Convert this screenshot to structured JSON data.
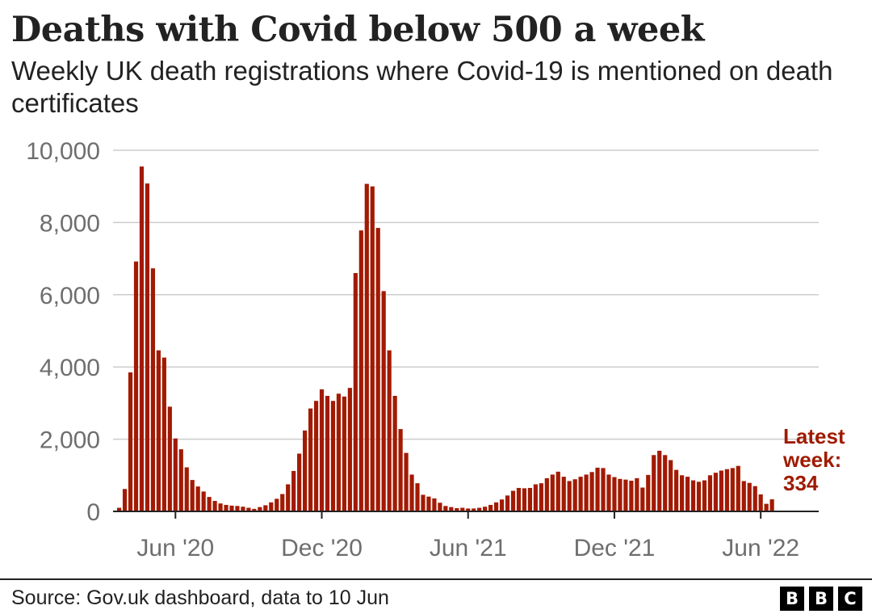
{
  "header": {
    "title": "Deaths with Covid below 500 a week",
    "subtitle": "Weekly UK death registrations where Covid-19 is mentioned on death certificates"
  },
  "annotation": {
    "line1": "Latest",
    "line2": "week:",
    "line3": "334"
  },
  "footer": {
    "source": "Source: Gov.uk dashboard, data to 10 Jun",
    "logo_letters": [
      "B",
      "B",
      "C"
    ]
  },
  "colors": {
    "bar": "#a21a03",
    "grid": "#cccccc",
    "axis": "#222222",
    "annotation": "#9f1b00"
  },
  "chart_data": {
    "type": "bar",
    "title": "Deaths with Covid below 500 a week",
    "xlabel": "",
    "ylabel": "",
    "ylim": [
      0,
      10000
    ],
    "y_ticks": [
      0,
      2000,
      4000,
      6000,
      8000,
      10000
    ],
    "y_tick_labels": [
      "0",
      "2,000",
      "4,000",
      "6,000",
      "8,000",
      "10,000"
    ],
    "x_tick_labels": [
      {
        "label": "Jun '20",
        "week_index": 10
      },
      {
        "label": "Dec '20",
        "week_index": 36
      },
      {
        "label": "Jun '21",
        "week_index": 62
      },
      {
        "label": "Dec '21",
        "week_index": 88
      },
      {
        "label": "Jun '22",
        "week_index": 114
      }
    ],
    "grid": true,
    "series": [
      {
        "name": "Weekly deaths with Covid-19 on death certificate",
        "values": [
          100,
          620,
          3850,
          6920,
          9550,
          9080,
          6730,
          4460,
          4260,
          2900,
          2020,
          1720,
          1220,
          870,
          690,
          550,
          400,
          290,
          220,
          180,
          160,
          150,
          130,
          100,
          70,
          120,
          170,
          250,
          350,
          480,
          750,
          1120,
          1600,
          2240,
          2850,
          3060,
          3380,
          3200,
          3060,
          3260,
          3180,
          3420,
          6600,
          7780,
          9070,
          9000,
          7850,
          6100,
          4460,
          3200,
          2280,
          1620,
          1020,
          780,
          460,
          410,
          360,
          240,
          150,
          120,
          90,
          100,
          80,
          80,
          100,
          130,
          180,
          250,
          330,
          440,
          570,
          650,
          640,
          650,
          750,
          780,
          920,
          1020,
          1100,
          960,
          840,
          890,
          960,
          1020,
          1090,
          1210,
          1200,
          1020,
          950,
          900,
          880,
          850,
          920,
          660,
          1010,
          1560,
          1680,
          1560,
          1420,
          1150,
          1000,
          960,
          860,
          820,
          860,
          1000,
          1070,
          1130,
          1170,
          1200,
          1260,
          840,
          790,
          700,
          470,
          210,
          334
        ]
      }
    ]
  }
}
